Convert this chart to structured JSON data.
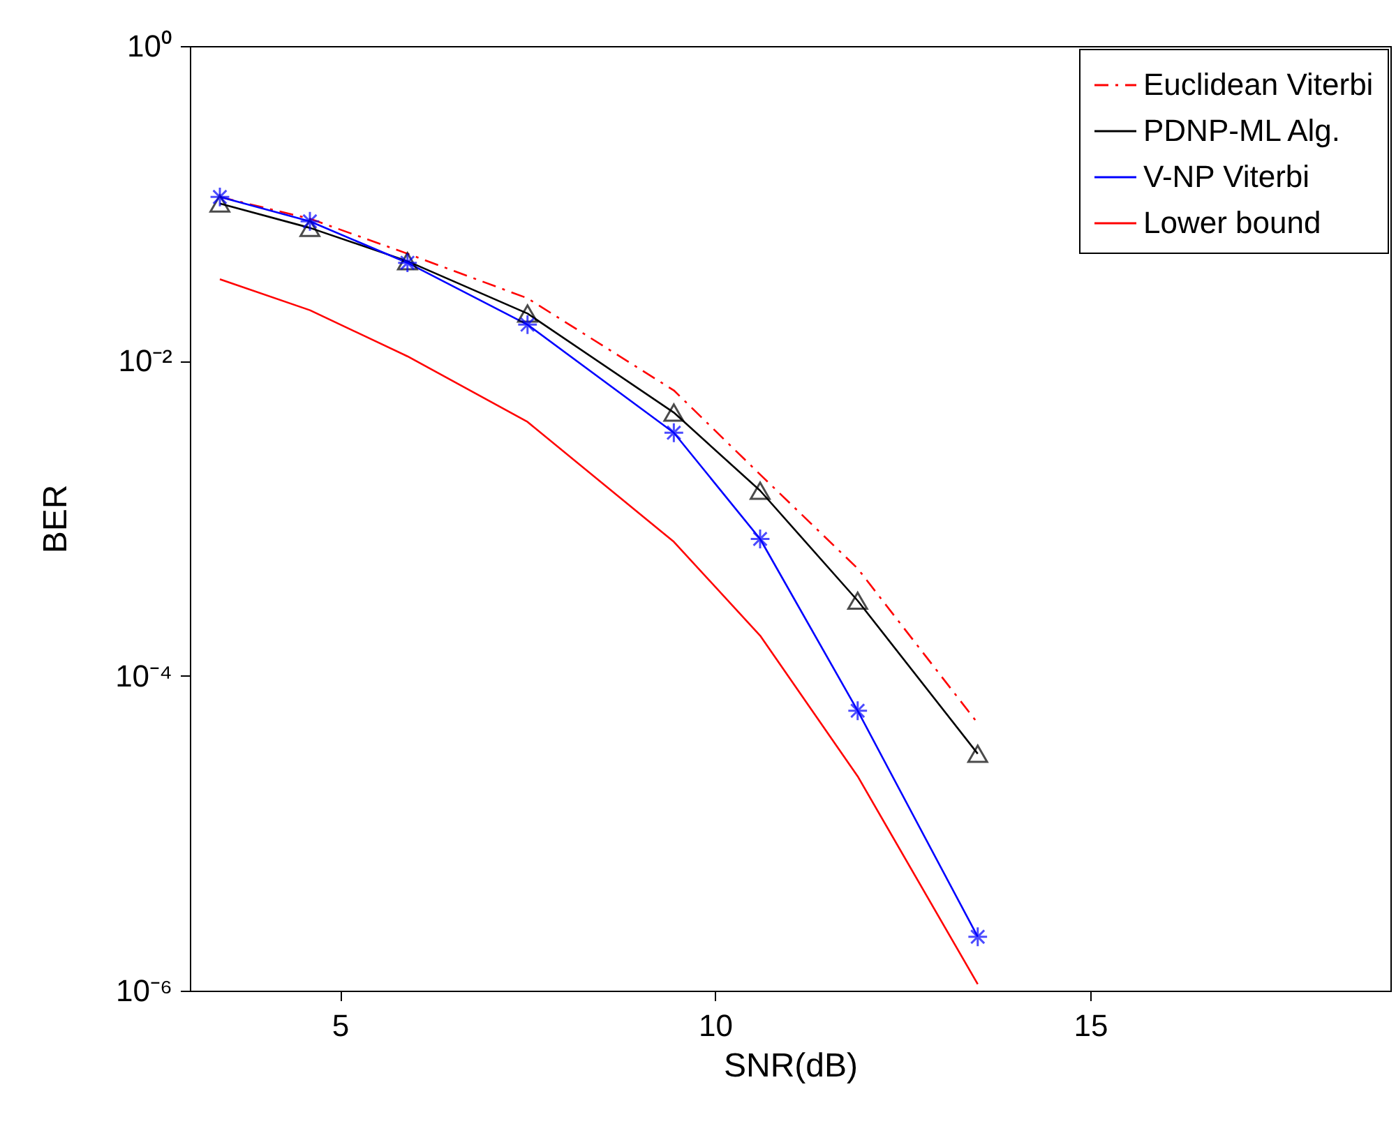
{
  "chart_data": {
    "type": "line",
    "xlabel": "SNR(dB)",
    "ylabel": "BER",
    "log": "y",
    "grid": false,
    "legend": "top right",
    "xlim": [
      3,
      19
    ],
    "xticks": [
      5,
      10,
      15
    ],
    "ylim": [
      1e-06,
      1
    ],
    "yticks": [
      {
        "value": 1e-06,
        "label": "10⁻⁶"
      },
      {
        "value": 0.0001,
        "label": "10⁻⁴"
      },
      {
        "value": 0.01,
        "label": "10⁻²"
      },
      {
        "value": 1,
        "label": "10⁰"
      }
    ],
    "x": [
      3.4,
      4.6,
      5.9,
      7.5,
      9.45,
      10.6,
      11.9,
      13.5
    ],
    "series": [
      {
        "name": "Euclidean Viterbi",
        "color": "#ff0000",
        "line_style": "dashed",
        "marker": "none",
        "values": [
          0.11,
          0.08,
          0.048,
          0.025,
          0.0065,
          0.0019,
          0.00048,
          5e-05
        ]
      },
      {
        "name": "PDNP-ML Alg.",
        "color": "#000000",
        "line_style": "solid",
        "marker": "triangle",
        "values": [
          0.1,
          0.07,
          0.043,
          0.02,
          0.0047,
          0.0015,
          0.0003,
          3.2e-05
        ]
      },
      {
        "name": "V-NP Viterbi",
        "color": "#0000ff",
        "line_style": "solid",
        "marker": "cross",
        "values": [
          0.11,
          0.077,
          0.042,
          0.017,
          0.0035,
          0.00074,
          6e-05,
          2.2e-06
        ]
      },
      {
        "name": "Lower bound",
        "color": "#ff0000",
        "line_style": "solid",
        "marker": "none",
        "values": [
          0.033,
          0.021,
          0.0107,
          0.0041,
          0.00071,
          0.00018,
          2.3e-05,
          1.1e-06
        ]
      }
    ]
  }
}
